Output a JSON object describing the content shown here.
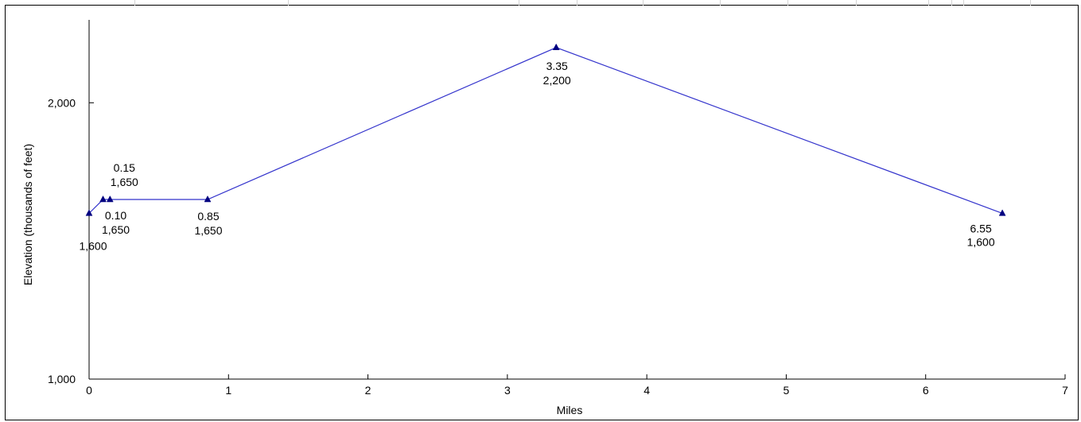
{
  "chart_data": {
    "type": "line",
    "xlabel": "Miles",
    "ylabel": "Elevation  (thousands of feet)",
    "xlim": [
      0,
      7
    ],
    "ylim": [
      1000,
      2300
    ],
    "x_ticks": [
      0,
      1,
      2,
      3,
      4,
      5,
      6,
      7
    ],
    "x_tick_labels": [
      "0",
      "1",
      "2",
      "3",
      "4",
      "5",
      "6",
      "7"
    ],
    "y_ticks": [
      1000,
      2000
    ],
    "y_tick_labels": [
      "1,000",
      "2,000"
    ],
    "grid": false,
    "legend": "none",
    "series": [
      {
        "color": "#3333cc",
        "marker_color": "#000080",
        "marker": "triangle",
        "points": [
          {
            "x": 0,
            "y": 1600,
            "label_x": "",
            "label_y": "1,600"
          },
          {
            "x": 0.1,
            "y": 1650,
            "label_x": "0.10",
            "label_y": "1,650"
          },
          {
            "x": 0.15,
            "y": 1650,
            "label_x": "0.15",
            "label_y": "1,650"
          },
          {
            "x": 0.85,
            "y": 1650,
            "label_x": "0.85",
            "label_y": "1,650"
          },
          {
            "x": 3.35,
            "y": 2200,
            "label_x": "3.35",
            "label_y": "2,200"
          },
          {
            "x": 6.55,
            "y": 1600,
            "label_x": "6.55",
            "label_y": "1,600"
          }
        ]
      }
    ]
  }
}
